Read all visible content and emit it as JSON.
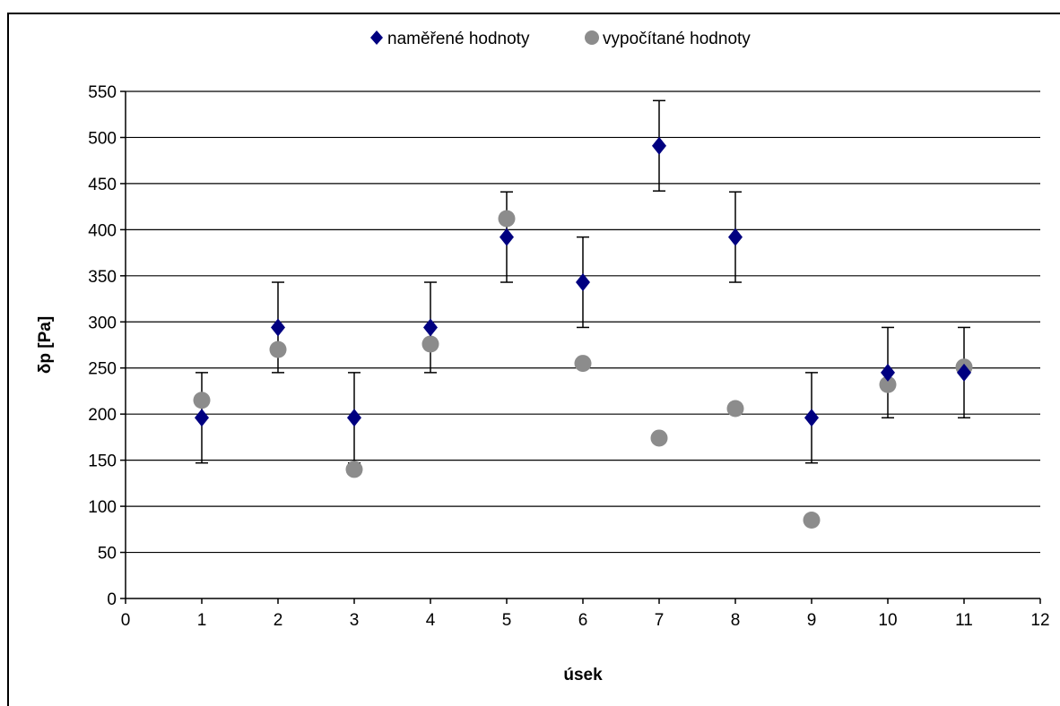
{
  "chart_data": {
    "type": "scatter",
    "xlabel": "úsek",
    "ylabel": "δp [Pa]",
    "xlim": [
      0,
      12
    ],
    "ylim": [
      0,
      550
    ],
    "x_ticks": [
      0,
      1,
      2,
      3,
      4,
      5,
      6,
      7,
      8,
      9,
      10,
      11,
      12
    ],
    "y_ticks": [
      0,
      50,
      100,
      150,
      200,
      250,
      300,
      350,
      400,
      450,
      500,
      550
    ],
    "grid": "horizontal major gridlines",
    "legend_position": "top-center",
    "series": [
      {
        "name": "naměřené hodnoty",
        "marker": "diamond",
        "color": "#000080",
        "error_bar": 49,
        "points": [
          {
            "x": 1,
            "y": 196
          },
          {
            "x": 2,
            "y": 294
          },
          {
            "x": 3,
            "y": 196
          },
          {
            "x": 4,
            "y": 294
          },
          {
            "x": 5,
            "y": 392
          },
          {
            "x": 6,
            "y": 343
          },
          {
            "x": 7,
            "y": 491
          },
          {
            "x": 8,
            "y": 392
          },
          {
            "x": 9,
            "y": 196
          },
          {
            "x": 10,
            "y": 245
          },
          {
            "x": 11,
            "y": 245
          }
        ]
      },
      {
        "name": "vypočítané hodnoty",
        "marker": "circle",
        "color": "#8c8c8c",
        "points": [
          {
            "x": 1,
            "y": 215
          },
          {
            "x": 2,
            "y": 270
          },
          {
            "x": 3,
            "y": 140
          },
          {
            "x": 4,
            "y": 276
          },
          {
            "x": 5,
            "y": 412
          },
          {
            "x": 6,
            "y": 255
          },
          {
            "x": 7,
            "y": 174
          },
          {
            "x": 8,
            "y": 206
          },
          {
            "x": 9,
            "y": 85
          },
          {
            "x": 10,
            "y": 232
          },
          {
            "x": 11,
            "y": 251
          }
        ]
      }
    ]
  }
}
